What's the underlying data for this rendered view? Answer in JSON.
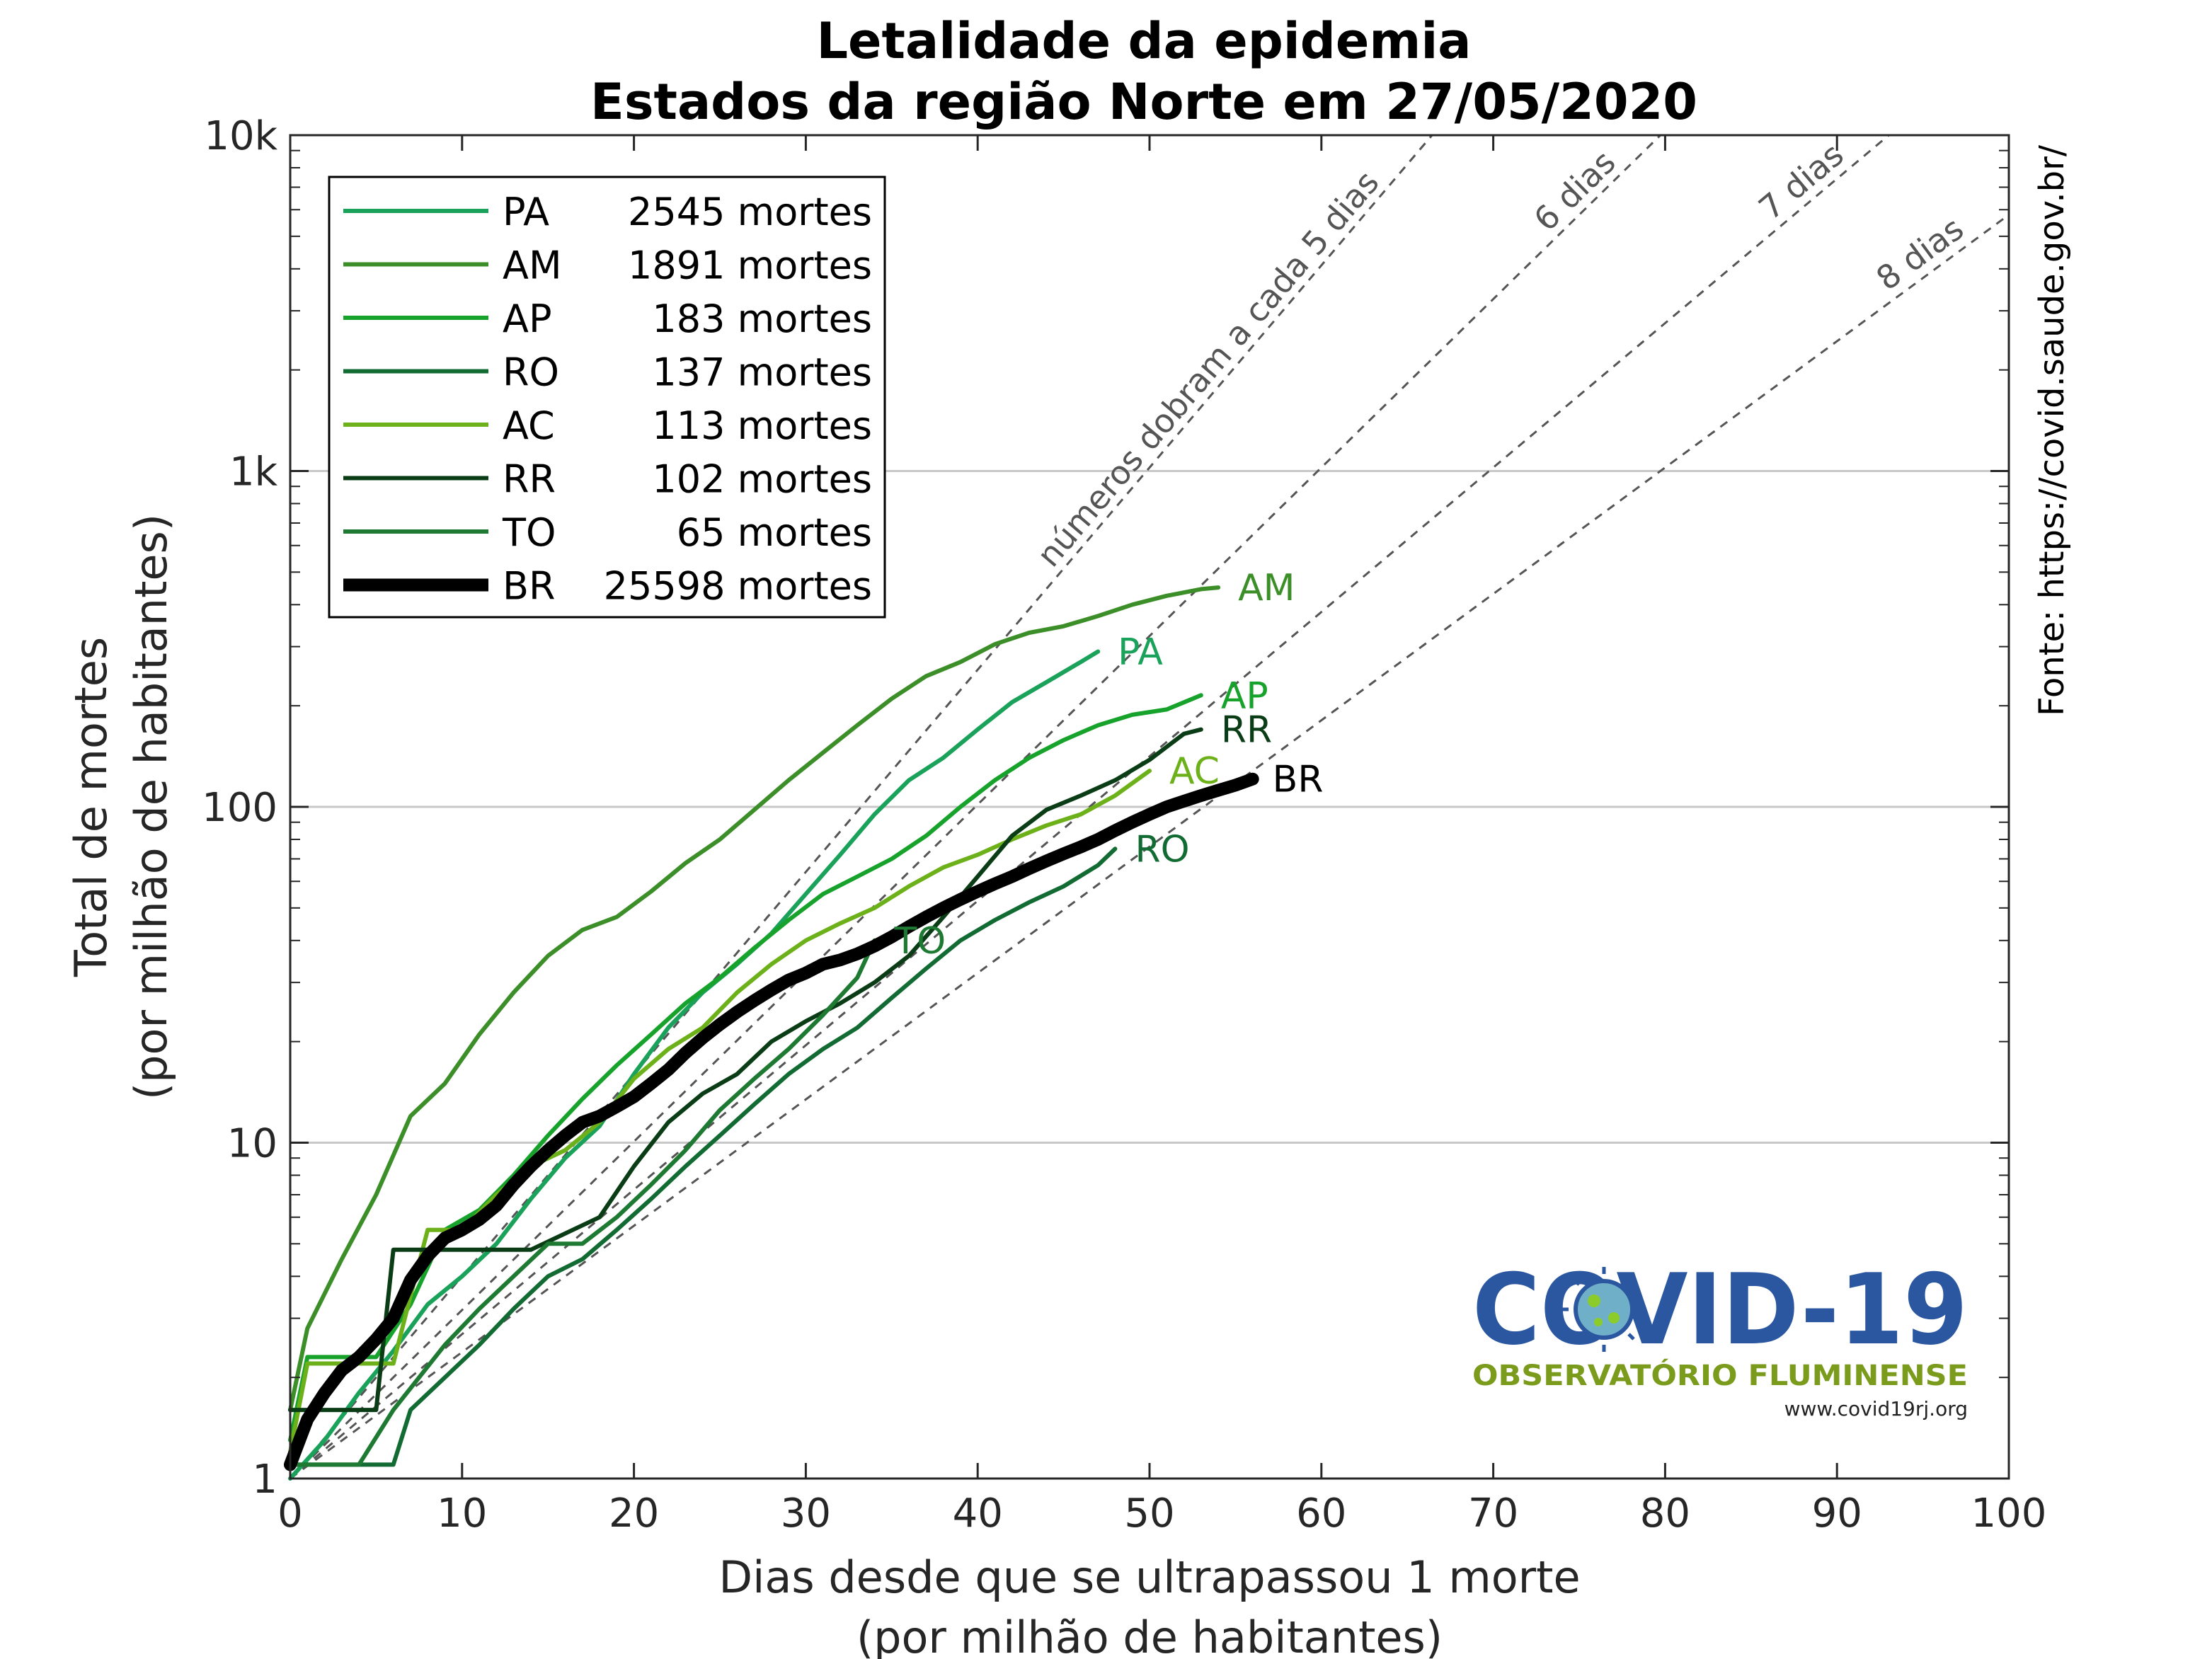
{
  "chart_data": {
    "type": "line",
    "title": "Letalidade da epidemia",
    "subtitle": "Estados da região Norte em 27/05/2020",
    "xlabel": [
      "Dias desde que se ultrapassou 1 morte",
      "(por milhão de habitantes)"
    ],
    "ylabel": [
      "Total de mortes",
      "(por milhão de habitantes)"
    ],
    "x_range": [
      0,
      100
    ],
    "y_range": [
      1,
      10000
    ],
    "y_scale": "log",
    "x_ticks": [
      0,
      10,
      20,
      30,
      40,
      50,
      60,
      70,
      80,
      90,
      100
    ],
    "y_ticks": [
      {
        "value": 1,
        "label": "1"
      },
      {
        "value": 10,
        "label": "10"
      },
      {
        "value": 100,
        "label": "100"
      },
      {
        "value": 1000,
        "label": "1k"
      },
      {
        "value": 10000,
        "label": "10k"
      }
    ],
    "grid": "horizontal at major y ticks",
    "legend_position": "top-left",
    "source_text": "Fonte: https://covid.saude.gov.br/",
    "reference_lines": [
      {
        "doubling_days": 5,
        "label": "números dobram a cada 5 dias"
      },
      {
        "doubling_days": 6,
        "label": "6 dias"
      },
      {
        "doubling_days": 7,
        "label": "7 dias"
      },
      {
        "doubling_days": 8,
        "label": "8 dias"
      }
    ],
    "series": [
      {
        "code": "PA",
        "deaths": "2545 mortes",
        "color": "#1aa15a",
        "width": 3,
        "points": [
          [
            0,
            1.0
          ],
          [
            2,
            1.3
          ],
          [
            4,
            1.8
          ],
          [
            6,
            2.4
          ],
          [
            8,
            3.3
          ],
          [
            10,
            4.0
          ],
          [
            12,
            5.0
          ],
          [
            14,
            6.8
          ],
          [
            16,
            9.0
          ],
          [
            18,
            11.2
          ],
          [
            20,
            16
          ],
          [
            22,
            22
          ],
          [
            24,
            28
          ],
          [
            26,
            34
          ],
          [
            28,
            42
          ],
          [
            30,
            55
          ],
          [
            32,
            72
          ],
          [
            34,
            95
          ],
          [
            36,
            120
          ],
          [
            38,
            140
          ],
          [
            40,
            170
          ],
          [
            42,
            205
          ],
          [
            44,
            235
          ],
          [
            46,
            270
          ],
          [
            47,
            290
          ]
        ]
      },
      {
        "code": "AM",
        "deaths": "1891 mortes",
        "color": "#3c8f28",
        "width": 3,
        "points": [
          [
            0,
            1.6
          ],
          [
            1,
            2.8
          ],
          [
            3,
            4.5
          ],
          [
            5,
            7
          ],
          [
            7,
            12
          ],
          [
            9,
            15
          ],
          [
            11,
            21
          ],
          [
            13,
            28
          ],
          [
            15,
            36
          ],
          [
            17,
            43
          ],
          [
            19,
            47
          ],
          [
            21,
            56
          ],
          [
            23,
            68
          ],
          [
            25,
            80
          ],
          [
            27,
            98
          ],
          [
            29,
            120
          ],
          [
            31,
            145
          ],
          [
            33,
            175
          ],
          [
            35,
            210
          ],
          [
            37,
            245
          ],
          [
            39,
            270
          ],
          [
            41,
            305
          ],
          [
            43,
            330
          ],
          [
            45,
            345
          ],
          [
            47,
            370
          ],
          [
            49,
            400
          ],
          [
            51,
            425
          ],
          [
            53,
            445
          ],
          [
            54,
            450
          ]
        ]
      },
      {
        "code": "AP",
        "deaths": "183 mortes",
        "color": "#17a32b",
        "width": 3,
        "points": [
          [
            0,
            1.3
          ],
          [
            1,
            2.3
          ],
          [
            5,
            2.3
          ],
          [
            7,
            3.3
          ],
          [
            9,
            5.5
          ],
          [
            11,
            6.3
          ],
          [
            13,
            8
          ],
          [
            15,
            10.5
          ],
          [
            17,
            13.5
          ],
          [
            19,
            17
          ],
          [
            21,
            21
          ],
          [
            23,
            26
          ],
          [
            25,
            31
          ],
          [
            27,
            38
          ],
          [
            29,
            46
          ],
          [
            31,
            55
          ],
          [
            33,
            62
          ],
          [
            35,
            70
          ],
          [
            37,
            82
          ],
          [
            39,
            100
          ],
          [
            41,
            120
          ],
          [
            43,
            140
          ],
          [
            45,
            158
          ],
          [
            47,
            175
          ],
          [
            49,
            188
          ],
          [
            51,
            195
          ],
          [
            53,
            215
          ]
        ]
      },
      {
        "code": "RO",
        "deaths": "137 mortes",
        "color": "#126b33",
        "width": 3,
        "points": [
          [
            0,
            1.1
          ],
          [
            6,
            1.1
          ],
          [
            7,
            1.6
          ],
          [
            9,
            2.0
          ],
          [
            11,
            2.5
          ],
          [
            13,
            3.2
          ],
          [
            15,
            4.0
          ],
          [
            17,
            4.5
          ],
          [
            19,
            5.5
          ],
          [
            21,
            6.8
          ],
          [
            23,
            8.5
          ],
          [
            25,
            10.5
          ],
          [
            27,
            13
          ],
          [
            29,
            16
          ],
          [
            31,
            19
          ],
          [
            33,
            22
          ],
          [
            35,
            27
          ],
          [
            37,
            33
          ],
          [
            39,
            40
          ],
          [
            41,
            46
          ],
          [
            43,
            52
          ],
          [
            45,
            58
          ],
          [
            47,
            67
          ],
          [
            48,
            75
          ]
        ]
      },
      {
        "code": "AC",
        "deaths": "113 mortes",
        "color": "#6db11a",
        "width": 3,
        "points": [
          [
            0,
            1.2
          ],
          [
            1,
            2.2
          ],
          [
            6,
            2.2
          ],
          [
            7,
            3.5
          ],
          [
            8,
            5.5
          ],
          [
            10,
            5.5
          ],
          [
            12,
            7
          ],
          [
            14,
            8.5
          ],
          [
            16,
            9.5
          ],
          [
            18,
            11.5
          ],
          [
            20,
            15.5
          ],
          [
            22,
            19
          ],
          [
            24,
            22
          ],
          [
            26,
            28
          ],
          [
            28,
            34
          ],
          [
            30,
            40
          ],
          [
            32,
            45
          ],
          [
            34,
            50
          ],
          [
            36,
            58
          ],
          [
            38,
            66
          ],
          [
            40,
            72
          ],
          [
            42,
            80
          ],
          [
            44,
            88
          ],
          [
            46,
            95
          ],
          [
            48,
            108
          ],
          [
            50,
            128
          ]
        ]
      },
      {
        "code": "RR",
        "deaths": "102 mortes",
        "color": "#0a3d16",
        "width": 3,
        "points": [
          [
            0,
            1.6
          ],
          [
            5,
            1.6
          ],
          [
            6,
            4.8
          ],
          [
            14,
            4.8
          ],
          [
            18,
            6
          ],
          [
            20,
            8.5
          ],
          [
            22,
            11.5
          ],
          [
            24,
            14
          ],
          [
            26,
            16
          ],
          [
            28,
            20
          ],
          [
            30,
            23
          ],
          [
            32,
            26
          ],
          [
            34,
            30
          ],
          [
            36,
            36
          ],
          [
            38,
            47
          ],
          [
            40,
            62
          ],
          [
            42,
            82
          ],
          [
            44,
            98
          ],
          [
            46,
            108
          ],
          [
            48,
            120
          ],
          [
            50,
            138
          ],
          [
            52,
            165
          ],
          [
            53,
            170
          ]
        ]
      },
      {
        "code": "TO",
        "deaths": "65 mortes",
        "color": "#1e7a32",
        "width": 3,
        "points": [
          [
            0,
            1.1
          ],
          [
            4,
            1.1
          ],
          [
            6,
            1.6
          ],
          [
            9,
            2.5
          ],
          [
            11,
            3.2
          ],
          [
            13,
            4.0
          ],
          [
            15,
            5.0
          ],
          [
            17,
            5.0
          ],
          [
            19,
            6.0
          ],
          [
            21,
            7.5
          ],
          [
            23,
            9.5
          ],
          [
            25,
            12.5
          ],
          [
            27,
            15.5
          ],
          [
            29,
            19
          ],
          [
            31,
            24
          ],
          [
            33,
            31
          ],
          [
            34,
            40
          ]
        ]
      },
      {
        "code": "BR",
        "deaths": "25598 mortes",
        "color": "#000000",
        "width": 9,
        "points": [
          [
            0,
            1.1
          ],
          [
            1,
            1.5
          ],
          [
            2,
            1.8
          ],
          [
            3,
            2.1
          ],
          [
            4,
            2.3
          ],
          [
            5,
            2.6
          ],
          [
            6,
            3.0
          ],
          [
            7,
            3.9
          ],
          [
            8,
            4.6
          ],
          [
            9,
            5.2
          ],
          [
            10,
            5.5
          ],
          [
            11,
            5.9
          ],
          [
            12,
            6.5
          ],
          [
            13,
            7.5
          ],
          [
            14,
            8.5
          ],
          [
            15,
            9.5
          ],
          [
            16,
            10.5
          ],
          [
            17,
            11.5
          ],
          [
            18,
            12
          ],
          [
            19,
            12.8
          ],
          [
            20,
            13.7
          ],
          [
            21,
            15
          ],
          [
            22,
            16.5
          ],
          [
            23,
            18.5
          ],
          [
            24,
            20.5
          ],
          [
            25,
            22.5
          ],
          [
            26,
            24.5
          ],
          [
            27,
            26.5
          ],
          [
            28,
            28.5
          ],
          [
            29,
            30.5
          ],
          [
            30,
            32
          ],
          [
            31,
            34
          ],
          [
            32,
            35
          ],
          [
            33,
            36.5
          ],
          [
            34,
            38.5
          ],
          [
            35,
            41
          ],
          [
            36,
            44
          ],
          [
            37,
            47
          ],
          [
            38,
            50
          ],
          [
            39,
            53
          ],
          [
            40,
            56
          ],
          [
            41,
            59
          ],
          [
            42,
            62
          ],
          [
            43,
            65.5
          ],
          [
            44,
            69
          ],
          [
            45,
            72.5
          ],
          [
            46,
            76
          ],
          [
            47,
            80
          ],
          [
            48,
            85
          ],
          [
            49,
            90
          ],
          [
            50,
            95
          ],
          [
            51,
            100
          ],
          [
            52,
            104
          ],
          [
            53,
            108
          ],
          [
            54,
            112
          ],
          [
            55,
            116
          ],
          [
            56,
            121
          ]
        ]
      }
    ],
    "end_labels": [
      {
        "code": "AM",
        "x": 54,
        "y": 450
      },
      {
        "code": "PA",
        "x": 47,
        "y": 290
      },
      {
        "code": "AP",
        "x": 53,
        "y": 215
      },
      {
        "code": "RR",
        "x": 53,
        "y": 170
      },
      {
        "code": "AC",
        "x": 50,
        "y": 128
      },
      {
        "code": "BR",
        "x": 56,
        "y": 121
      },
      {
        "code": "RO",
        "x": 48,
        "y": 75
      },
      {
        "code": "TO",
        "x": 34,
        "y": 40
      }
    ]
  },
  "logo": {
    "title": "COVID-19",
    "subtitle": "OBSERVATÓRIO FLUMINENSE",
    "url": "www.covid19rj.org"
  }
}
